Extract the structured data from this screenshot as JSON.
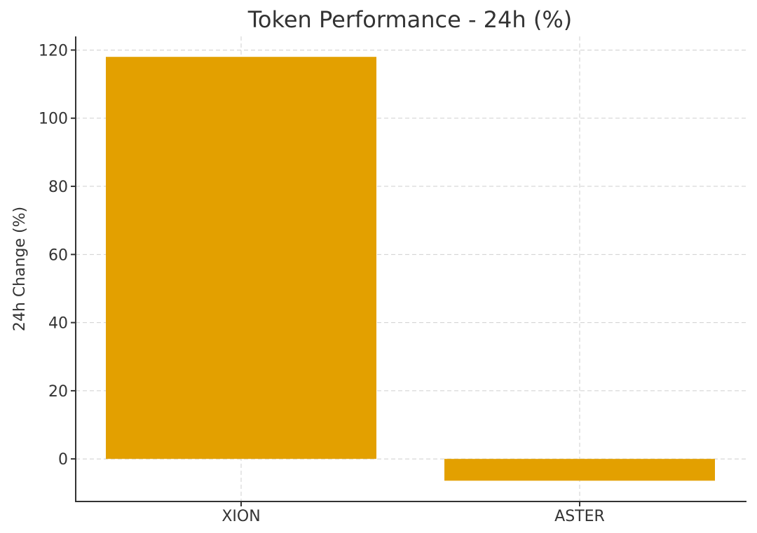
{
  "chart_data": {
    "type": "bar",
    "title": "Token Performance - 24h (%)",
    "xlabel": "",
    "ylabel": "24h Change (%)",
    "categories": [
      "XION",
      "ASTER"
    ],
    "values": [
      118.0,
      -6.4
    ],
    "ylim": [
      -12.5,
      124
    ],
    "yticks": [
      0,
      20,
      40,
      60,
      80,
      100,
      120
    ],
    "grid": true,
    "bar_color": "#E3A000",
    "legend": "none"
  }
}
